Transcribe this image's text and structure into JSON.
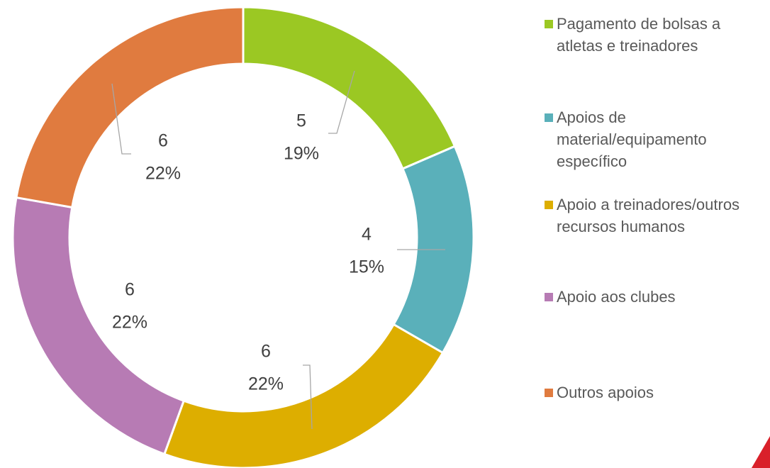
{
  "chart_data": {
    "type": "donut",
    "categories": [
      "Pagamento de bolsas a atletas e treinadores",
      "Apoios de material/equipamento específico",
      "Apoio a treinadores/outros recursos humanos",
      "Apoio aos clubes",
      "Outros apoios"
    ],
    "values": [
      5,
      4,
      6,
      6,
      6
    ],
    "percent_labels": [
      "19%",
      "15%",
      "22%",
      "22%",
      "22%"
    ],
    "colors": [
      "#9bc823",
      "#5ab0ba",
      "#ddae00",
      "#b77bb4",
      "#e07b3f"
    ],
    "legend": "right"
  }
}
